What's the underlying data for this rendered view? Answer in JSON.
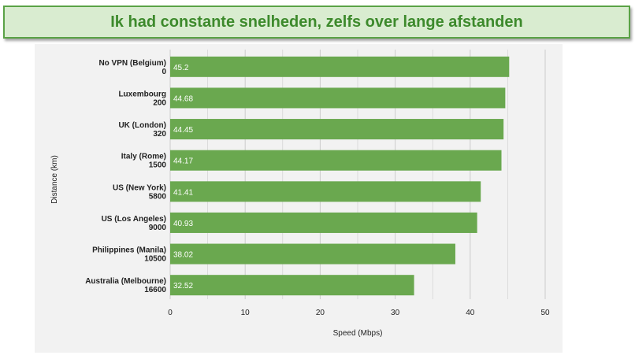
{
  "banner": {
    "title": "Ik had constante snelheden, zelfs over lange afstanden"
  },
  "chart_data": {
    "type": "bar",
    "orientation": "horizontal",
    "categories": [
      {
        "name": "No VPN (Belgium)",
        "distance": "0"
      },
      {
        "name": "Luxembourg",
        "distance": "200"
      },
      {
        "name": "UK (London)",
        "distance": "320"
      },
      {
        "name": "Italy (Rome)",
        "distance": "1500"
      },
      {
        "name": "US (New York)",
        "distance": "5800"
      },
      {
        "name": "US (Los Angeles)",
        "distance": "9000"
      },
      {
        "name": "Philippines (Manila)",
        "distance": "10500"
      },
      {
        "name": "Australia (Melbourne)",
        "distance": "16600"
      }
    ],
    "values": [
      45.2,
      44.68,
      44.45,
      44.17,
      41.41,
      40.93,
      38.02,
      32.52
    ],
    "xlabel": "Speed (Mbps)",
    "ylabel": "Distance (km)",
    "xlim": [
      0,
      50
    ],
    "xticks": [
      "0",
      "10",
      "20",
      "30",
      "40",
      "50"
    ],
    "grid": true,
    "colors": {
      "bar": "#6aa84f",
      "grid": "#cccccc",
      "background": "#f2f2f2"
    }
  }
}
